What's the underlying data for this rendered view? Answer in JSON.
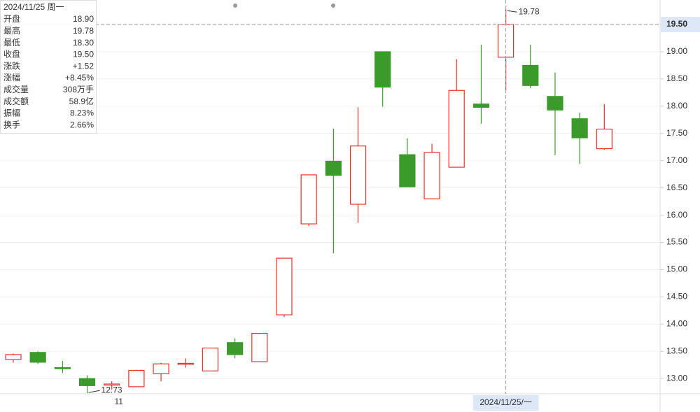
{
  "chart_data": {
    "type": "candlestick",
    "categories": [
      null,
      null,
      null,
      null,
      "11",
      null,
      null,
      null,
      null,
      null,
      null,
      null,
      null,
      null,
      null,
      null,
      null,
      null,
      null,
      null,
      "2024/11/25/一",
      null,
      null,
      null,
      null
    ],
    "open": [
      13.35,
      13.48,
      13.2,
      13.0,
      12.88,
      12.85,
      13.09,
      13.27,
      13.14,
      13.66,
      13.31,
      14.17,
      15.84,
      16.99,
      16.2,
      19.0,
      17.11,
      16.3,
      16.88,
      18.04,
      18.9,
      18.75,
      18.18,
      17.77,
      17.22
    ],
    "high": [
      13.46,
      13.5,
      13.32,
      13.06,
      12.95,
      13.16,
      13.29,
      13.37,
      13.57,
      13.74,
      13.84,
      15.21,
      16.74,
      17.59,
      17.98,
      19.0,
      17.41,
      17.31,
      18.86,
      19.13,
      19.78,
      19.13,
      18.62,
      17.88,
      18.04
    ],
    "low": [
      13.29,
      13.27,
      13.1,
      12.73,
      12.8,
      12.85,
      12.95,
      13.2,
      13.14,
      13.37,
      13.31,
      14.13,
      15.8,
      15.3,
      15.86,
      17.99,
      16.52,
      16.3,
      16.88,
      17.68,
      18.3,
      18.33,
      17.1,
      16.94,
      17.2
    ],
    "close": [
      13.44,
      13.3,
      13.19,
      12.87,
      12.9,
      13.15,
      13.27,
      13.28,
      13.56,
      13.44,
      13.83,
      15.21,
      16.74,
      16.73,
      17.27,
      18.35,
      16.52,
      17.15,
      18.29,
      17.98,
      19.5,
      18.38,
      17.93,
      17.42,
      17.58
    ],
    "up_color": "#e8312f",
    "down_color": "#3a9a2a",
    "ylim": [
      12.72,
      19.95
    ],
    "yticks": [
      {
        "value": 13,
        "label": "13.00"
      },
      {
        "value": 13.5,
        "label": "13.50"
      },
      {
        "value": 14,
        "label": "14.00"
      },
      {
        "value": 14.5,
        "label": "14.50"
      },
      {
        "value": 15,
        "label": "15.00"
      },
      {
        "value": 15.5,
        "label": "15.50"
      },
      {
        "value": 16,
        "label": "16.00"
      },
      {
        "value": 16.5,
        "label": "16.50"
      },
      {
        "value": 17,
        "label": "17.00"
      },
      {
        "value": 17.5,
        "label": "17.50"
      },
      {
        "value": 18,
        "label": "18.00"
      },
      {
        "value": 18.5,
        "label": "18.50"
      },
      {
        "value": 19,
        "label": "19.00"
      },
      {
        "value": 19.5,
        "label": "19.50"
      }
    ],
    "grid": true,
    "crosshair": {
      "index": 20,
      "value": 19.5,
      "label": "19.50"
    },
    "info_panel": {
      "date": "2024/11/25 周一",
      "rows": [
        {
          "label": "开盘",
          "value": "18.90",
          "color": "#e8312f"
        },
        {
          "label": "最高",
          "value": "19.78",
          "color": "#e8312f"
        },
        {
          "label": "最低",
          "value": "18.30",
          "color": "#e8312f"
        },
        {
          "label": "收盘",
          "value": "19.50",
          "color": "#e8312f"
        },
        {
          "label": "涨跌",
          "value": "+1.52",
          "color": "#e8312f"
        },
        {
          "label": "涨幅",
          "value": "+8.45%",
          "color": "#e8312f"
        },
        {
          "label": "成交量",
          "value": "308万手",
          "color": "#333333"
        },
        {
          "label": "成交额",
          "value": "58.9亿",
          "color": "#333333"
        },
        {
          "label": "振幅",
          "value": "8.23%",
          "color": "#333333"
        },
        {
          "label": "换手",
          "value": "2.66%",
          "color": "#333333"
        }
      ]
    }
  }
}
